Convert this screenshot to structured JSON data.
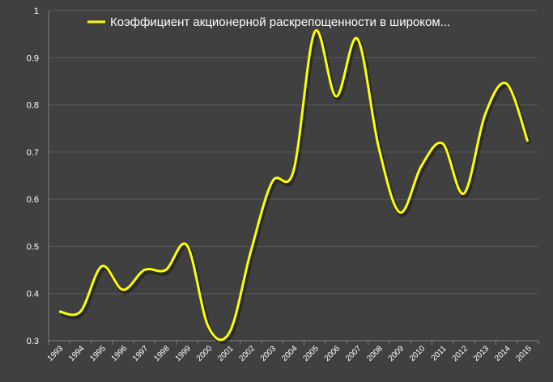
{
  "chart_data": {
    "type": "line",
    "legend": "top-center",
    "grid": true,
    "ylim": [
      0.3,
      1
    ],
    "yticks": [
      "0.3",
      "0.4",
      "0.5",
      "0.6",
      "0.7",
      "0.8",
      "0.9",
      "1"
    ],
    "categories": [
      "1993",
      "1994",
      "1995",
      "1996",
      "1997",
      "1998",
      "1999",
      "2000",
      "2001",
      "2002",
      "2003",
      "2004",
      "2005",
      "2006",
      "2007",
      "2008",
      "2009",
      "2010",
      "2011",
      "2012",
      "2013",
      "2014",
      "2015"
    ],
    "series": [
      {
        "name": "Коэффициент акционерной раскрепощенности в широком...",
        "color": "#ffff00",
        "values": [
          0.362,
          0.362,
          0.458,
          0.408,
          0.45,
          0.45,
          0.502,
          0.33,
          0.318,
          0.49,
          0.637,
          0.66,
          0.955,
          0.818,
          0.94,
          0.71,
          0.572,
          0.67,
          0.718,
          0.612,
          0.78,
          0.845,
          0.722
        ]
      }
    ]
  },
  "colors": {
    "background": "#404040",
    "grid": "#5a5a5a",
    "axis": "#7f7f7f",
    "text": "#ffffff"
  }
}
